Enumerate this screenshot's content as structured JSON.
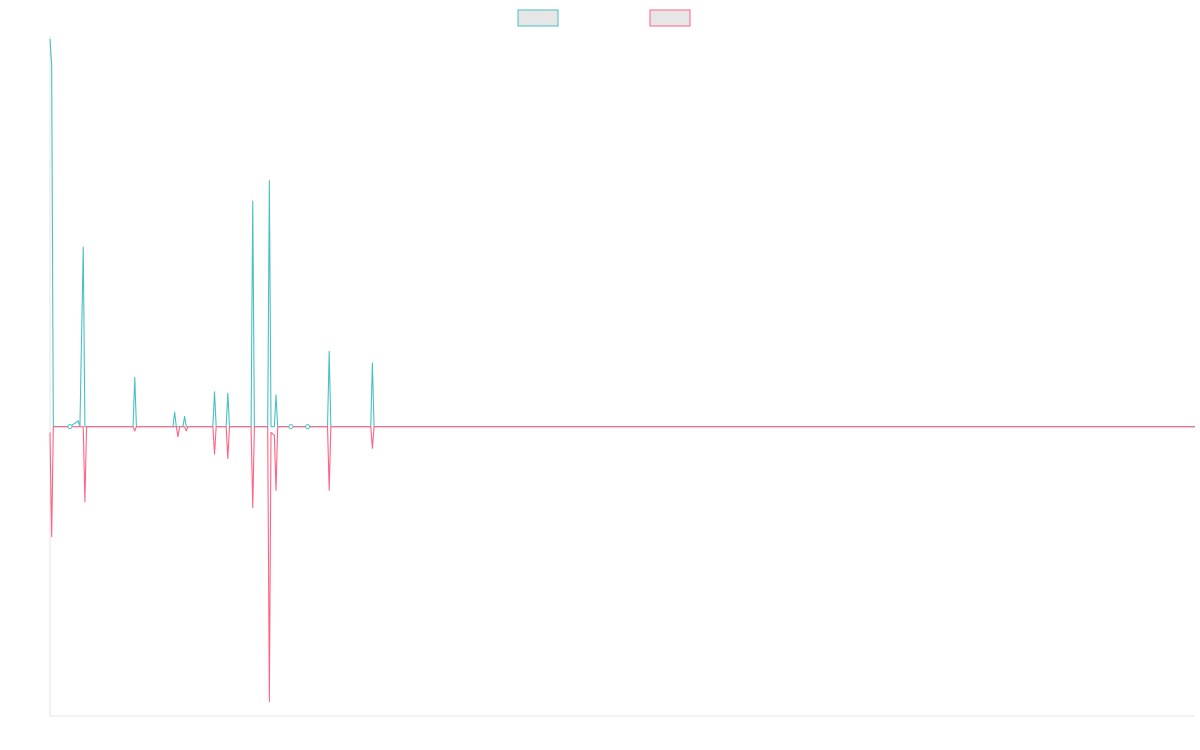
{
  "chart_data": {
    "type": "line",
    "title": "",
    "xlabel": "",
    "ylabel": "",
    "grid": false,
    "legend": "top-center",
    "x": [
      0,
      1,
      2,
      3,
      4,
      5,
      6,
      7,
      8,
      9,
      10,
      11,
      12,
      13,
      14,
      15,
      16,
      17,
      18,
      19,
      20,
      21,
      22,
      23,
      24,
      25,
      26,
      27,
      28,
      29,
      30,
      31,
      32,
      33,
      34,
      35,
      36,
      37,
      38,
      39,
      40,
      41,
      42,
      43,
      44,
      45,
      46,
      47,
      48,
      49,
      50,
      51,
      52,
      53,
      54,
      55,
      56,
      57,
      58,
      59,
      60,
      61,
      62,
      63,
      64,
      65,
      66,
      67,
      68,
      69,
      70,
      71,
      72,
      73,
      74,
      75,
      76,
      77,
      78,
      79,
      80,
      81,
      82,
      83,
      84,
      85,
      86,
      87,
      88,
      89,
      90,
      91,
      92,
      93,
      94,
      95,
      96,
      97,
      98,
      99,
      100,
      101,
      102,
      103,
      104,
      105,
      106,
      107,
      108,
      109,
      110,
      111,
      112,
      113,
      114,
      115,
      116,
      117,
      118,
      119,
      120,
      121,
      122,
      123,
      124,
      125,
      126,
      127,
      128,
      129,
      130,
      131,
      132,
      133,
      134,
      135,
      136,
      137,
      138,
      139,
      140,
      141,
      142,
      143,
      144,
      145,
      146,
      147,
      148,
      149,
      150,
      151,
      152,
      153,
      154,
      155,
      156,
      157,
      158,
      159,
      160,
      161,
      162,
      163,
      164,
      165,
      166,
      167,
      168,
      169,
      170,
      171,
      172,
      173,
      174,
      175,
      176,
      177,
      178,
      179,
      180,
      181,
      182,
      183,
      184,
      185,
      186,
      187,
      188,
      189,
      190,
      191,
      192,
      193,
      194,
      195,
      196,
      197,
      198,
      199,
      200,
      201,
      202,
      203,
      204,
      205,
      206,
      207,
      208,
      209,
      210,
      211,
      212,
      213,
      214,
      215,
      216,
      217,
      218,
      219,
      220,
      221,
      222,
      223,
      224,
      225,
      226,
      227,
      228,
      229,
      230,
      231,
      232,
      233,
      234,
      235,
      236,
      237,
      238,
      239,
      240,
      241,
      242,
      243,
      244,
      245,
      246,
      247,
      248,
      249,
      250,
      251,
      252,
      253,
      254,
      255,
      256,
      257,
      258,
      259,
      260,
      261,
      262,
      263,
      264,
      265,
      266,
      267,
      268,
      269,
      270,
      271,
      272,
      273,
      274,
      275,
      276,
      277,
      278,
      279,
      280,
      281,
      282,
      283,
      284,
      285,
      286,
      287,
      288,
      289,
      290,
      291,
      292,
      293,
      294,
      295,
      296,
      297,
      298,
      299,
      300,
      301,
      302,
      303,
      304,
      305,
      306,
      307,
      308,
      309,
      310,
      311,
      312,
      313,
      314,
      315,
      316,
      317,
      318,
      319,
      320,
      321,
      322,
      323,
      324,
      325,
      326,
      327,
      328,
      329,
      330,
      331,
      332,
      333,
      334,
      335,
      336,
      337,
      338,
      339,
      340,
      341,
      342,
      343,
      344,
      345,
      346,
      347,
      348,
      349,
      350,
      351,
      352,
      353,
      354,
      355,
      356,
      357,
      358,
      359,
      360,
      361,
      362,
      363,
      364,
      365,
      366,
      367,
      368,
      369,
      370,
      371,
      372,
      373,
      374,
      375,
      376,
      377,
      378,
      379,
      380,
      381,
      382,
      383,
      384,
      385,
      386,
      387,
      388,
      389,
      390,
      391,
      392,
      393,
      394,
      395,
      396,
      397,
      398,
      399,
      400,
      401,
      402,
      403,
      404,
      405,
      406,
      407,
      408,
      409,
      410,
      411,
      412,
      413,
      414,
      415,
      416,
      417,
      418,
      419,
      420,
      421,
      422,
      423,
      424,
      425,
      426,
      427,
      428,
      429,
      430,
      431,
      432,
      433,
      434,
      435,
      436,
      437,
      438,
      439,
      440,
      441,
      442,
      443,
      444,
      445,
      446,
      447,
      448,
      449,
      450,
      451,
      452,
      453,
      454,
      455,
      456,
      457,
      458,
      459,
      460,
      461,
      462,
      463,
      464,
      465,
      466,
      467,
      468,
      469,
      470,
      471,
      472,
      473,
      474,
      475,
      476,
      477,
      478,
      479,
      480,
      481,
      482,
      483,
      484,
      485,
      486,
      487,
      488,
      489,
      490,
      491,
      492,
      493,
      494,
      495,
      496,
      497,
      498,
      499,
      500,
      501,
      502,
      503,
      504,
      505,
      506,
      507,
      508,
      509,
      510,
      511,
      512,
      513,
      514,
      515,
      516,
      517,
      518,
      519,
      520,
      521,
      522,
      523,
      524,
      525,
      526,
      527,
      528,
      529,
      530,
      531,
      532,
      533,
      534,
      535,
      536,
      537,
      538,
      539,
      540,
      541,
      542,
      543,
      544,
      545,
      546,
      547,
      548,
      549,
      550,
      551,
      552,
      553,
      554,
      555,
      556,
      557,
      558,
      559,
      560,
      561,
      562,
      563,
      564,
      565,
      566,
      567,
      568,
      569,
      570,
      571,
      572,
      573,
      574,
      575,
      576,
      577,
      578,
      579,
      580,
      581,
      582,
      583,
      584,
      585,
      586,
      587,
      588,
      589,
      590,
      591,
      592,
      593,
      594,
      595,
      596,
      597,
      598,
      599,
      600,
      601,
      602,
      603,
      604,
      605,
      606,
      607,
      608,
      609,
      610,
      611,
      612,
      613,
      614,
      615,
      616,
      617,
      618,
      619,
      620,
      621,
      622,
      623,
      624,
      625,
      626,
      627,
      628,
      629,
      630,
      631,
      632,
      633,
      634,
      635,
      636,
      637,
      638,
      639,
      640,
      641,
      642,
      643,
      644,
      645,
      646,
      647,
      648,
      649,
      650,
      651,
      652,
      653,
      654,
      655,
      656,
      657,
      658,
      659,
      660,
      661,
      662,
      663,
      664,
      665,
      666,
      667,
      668,
      669,
      670,
      671,
      672,
      673,
      674,
      675,
      676,
      677,
      678,
      679,
      680,
      681,
      682,
      683,
      684,
      685,
      686,
      687,
      688,
      689
    ],
    "ylim": [
      -1.0,
      1.35
    ],
    "series": [
      {
        "name": "",
        "color": "#4bc0c0",
        "fill": "#e6e6e6",
        "points": [
          [
            0,
            1.34
          ],
          [
            1,
            1.25
          ],
          [
            2,
            0
          ],
          [
            12,
            0.0
          ],
          [
            17,
            0.02
          ],
          [
            18,
            0
          ],
          [
            20,
            0.62
          ],
          [
            21,
            0
          ],
          [
            50,
            0
          ],
          [
            51,
            0.17
          ],
          [
            52,
            0
          ],
          [
            74,
            0
          ],
          [
            75,
            0.05
          ],
          [
            76,
            0
          ],
          [
            80,
            0
          ],
          [
            81,
            0.035
          ],
          [
            82,
            0
          ],
          [
            98,
            0
          ],
          [
            99,
            0.12
          ],
          [
            100,
            0
          ],
          [
            106,
            0
          ],
          [
            107,
            0.115
          ],
          [
            108,
            0
          ],
          [
            121,
            0
          ],
          [
            122,
            0.78
          ],
          [
            123,
            0
          ],
          [
            131,
            0
          ],
          [
            132,
            0.85
          ],
          [
            133,
            0
          ],
          [
            135,
            0
          ],
          [
            136,
            0.11
          ],
          [
            137,
            0
          ],
          [
            167,
            0
          ],
          [
            168,
            0.26
          ],
          [
            169,
            0
          ],
          [
            193,
            0
          ],
          [
            194,
            0.22
          ],
          [
            195,
            0
          ],
          [
            689,
            0
          ]
        ]
      },
      {
        "name": "",
        "color": "#ff6384",
        "fill": "#e6e6e6",
        "points": [
          [
            0,
            -0.02
          ],
          [
            1,
            -0.38
          ],
          [
            2,
            0
          ],
          [
            20,
            0
          ],
          [
            21,
            -0.26
          ],
          [
            22,
            0
          ],
          [
            50,
            0
          ],
          [
            51,
            -0.015
          ],
          [
            52,
            0
          ],
          [
            76,
            0
          ],
          [
            77,
            -0.035
          ],
          [
            78,
            0
          ],
          [
            81,
            0
          ],
          [
            82,
            -0.015
          ],
          [
            83,
            0
          ],
          [
            98,
            0
          ],
          [
            99,
            -0.095
          ],
          [
            100,
            0
          ],
          [
            106,
            0
          ],
          [
            107,
            -0.11
          ],
          [
            108,
            0
          ],
          [
            121,
            0
          ],
          [
            122,
            -0.28
          ],
          [
            123,
            0
          ],
          [
            131,
            0
          ],
          [
            132,
            -0.95
          ],
          [
            133,
            -0.02
          ],
          [
            135,
            -0.03
          ],
          [
            136,
            -0.22
          ],
          [
            137,
            0
          ],
          [
            167,
            0
          ],
          [
            168,
            -0.22
          ],
          [
            169,
            0
          ],
          [
            193,
            0
          ],
          [
            194,
            -0.075
          ],
          [
            195,
            0
          ],
          [
            689,
            0
          ]
        ]
      }
    ],
    "markers": [
      {
        "x": 12,
        "y": 0
      },
      {
        "x": 145,
        "y": 0
      },
      {
        "x": 155,
        "y": 0
      }
    ]
  }
}
